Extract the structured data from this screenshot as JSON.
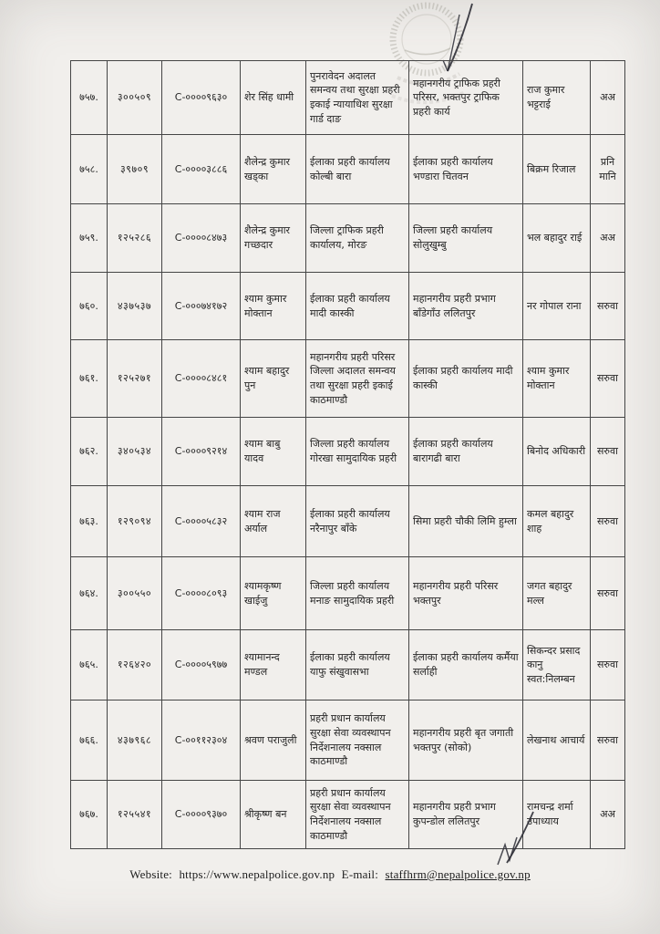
{
  "document": {
    "footer": {
      "website_label": "Website:",
      "website": "https://www.nepalpolice.gov.np",
      "email_label": "E-mail:",
      "email": "staffhrm@nepalpolice.gov.np"
    },
    "stamp": "nepal-government-seal",
    "table": {
      "columns": [
        "serial-no",
        "employee-no",
        "c-no",
        "name",
        "current-office",
        "new-office",
        "replacement-name",
        "remark"
      ],
      "rows": [
        {
          "sn": "७५७.",
          "reg_no": "३००५०९",
          "c_no": "C-००००९६३०",
          "name": "शेर सिंह धामी",
          "from_office": "पुनरावेदन अदालत समन्वय तथा सुरक्षा प्रहरी इकाई न्यायाधिश सुरक्षा गार्ड दाङ",
          "to_office": "महानगरीय ट्राफिक प्रहरी परिसर, भक्तपुर ट्राफिक प्रहरी कार्य",
          "replacement": "राज कुमार भट्टराई",
          "remark": "अअ"
        },
        {
          "sn": "७५८.",
          "reg_no": "३९७०९",
          "c_no": "C-००००३८८६",
          "name": "शैलेन्द्र कुमार खड्का",
          "from_office": "ईलाका प्रहरी कार्यालय कोल्बी बारा",
          "to_office": "ईलाका प्रहरी कार्यालय भण्डारा चितवन",
          "replacement": "बिक्रम रिजाल",
          "remark": "प्रनि मानि"
        },
        {
          "sn": "७५९.",
          "reg_no": "१२५२८६",
          "c_no": "C-००००८४७३",
          "name": "शैलेन्द्र कुमार गच्छदार",
          "from_office": "जिल्ला ट्राफिक प्रहरी कार्यालय, मोरङ",
          "to_office": "जिल्ला प्रहरी कार्यालय सोलुखुम्बु",
          "replacement": "भल बहादुर राई",
          "remark": "अअ"
        },
        {
          "sn": "७६०.",
          "reg_no": "४३७५३७",
          "c_no": "C-०००७४१७२",
          "name": "श्याम कुमार मोक्तान",
          "from_office": "ईलाका प्रहरी कार्यालय मादी कास्की",
          "to_office": "महानगरीय प्रहरी प्रभाग बाँडेगाँउ ललितपुर",
          "replacement": "नर गोपाल राना",
          "remark": "सरुवा"
        },
        {
          "sn": "७६१.",
          "reg_no": "१२५२७१",
          "c_no": "C-००००८४८१",
          "name": "श्याम बहादुर पुन",
          "from_office": "महानगरीय प्रहरी परिसर जिल्ला अदालत समन्वय तथा सुरक्षा प्रहरी इकाई काठमाण्डौ",
          "to_office": "ईलाका प्रहरी कार्यालय मादी कास्की",
          "replacement": "श्याम कुमार मोक्तान",
          "remark": "सरुवा"
        },
        {
          "sn": "७६२.",
          "reg_no": "३४०५३४",
          "c_no": "C-००००९२१४",
          "name": "श्याम बाबु यादव",
          "from_office": "जिल्ला प्रहरी कार्यालय गोरखा सामुदायिक प्रहरी",
          "to_office": "ईलाका प्रहरी कार्यालय बारागढी बारा",
          "replacement": "बिनोद अधिकारी",
          "remark": "सरुवा"
        },
        {
          "sn": "७६३.",
          "reg_no": "१२९०९४",
          "c_no": "C-००००५८३२",
          "name": "श्याम राज अर्याल",
          "from_office": "ईलाका प्रहरी कार्यालय नरैनापुर बाँके",
          "to_office": "सिमा प्रहरी चौकी लिमि हुम्ला",
          "replacement": "कमल बहादुर शाह",
          "remark": "सरुवा"
        },
        {
          "sn": "७६४.",
          "reg_no": "३००५५०",
          "c_no": "C-००००८०९३",
          "name": "श्यामकृष्ण खाईजु",
          "from_office": "जिल्ला प्रहरी कार्यालय मनाङ सामुदायिक प्रहरी",
          "to_office": "महानगरीय प्रहरी परिसर भक्तपुर",
          "replacement": "जगत बहादुर मल्ल",
          "remark": "सरुवा"
        },
        {
          "sn": "७६५.",
          "reg_no": "१२६४२०",
          "c_no": "C-००००५९७७",
          "name": "श्यामानन्द मण्डल",
          "from_office": "ईलाका प्रहरी कार्यालय याफु संखुवासभा",
          "to_office": "ईलाका प्रहरी कार्यालय कर्मैया सर्लाही",
          "replacement": "सिकन्दर प्रसाद कानु स्वत:निलम्बन",
          "remark": "सरुवा"
        },
        {
          "sn": "७६६.",
          "reg_no": "४३७९६८",
          "c_no": "C-००११२३०४",
          "name": "श्रवण पराजुली",
          "from_office": "प्रहरी प्रधान कार्यालय सुरक्षा सेवा व्यवस्थापन निर्देशनालय नक्साल काठमाण्डौ",
          "to_office": "महानगरीय प्रहरी बृत जगाती भक्तपुर (सोको)",
          "replacement": "लेखनाथ आचार्य",
          "remark": "सरुवा"
        },
        {
          "sn": "७६७.",
          "reg_no": "१२५५४१",
          "c_no": "C-००००९३७०",
          "name": "श्रीकृष्ण बन",
          "from_office": "प्रहरी प्रधान कार्यालय सुरक्षा सेवा व्यवस्थापन निर्देशनालय नक्साल काठमाण्डौ",
          "to_office": "महानगरीय प्रहरी प्रभाग कुपन्डोल ललितपुर",
          "replacement": "रामचन्द्र शर्मा उपाध्याय",
          "remark": "अअ"
        }
      ]
    }
  }
}
